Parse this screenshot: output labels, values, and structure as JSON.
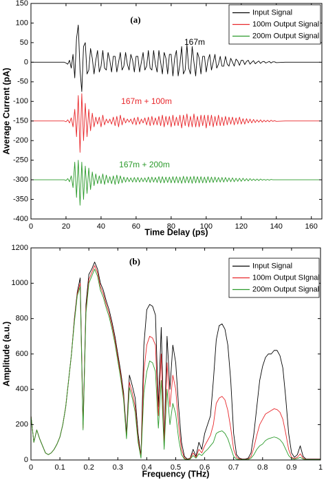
{
  "chart_data": [
    {
      "type": "line",
      "xlabel": "Time Delay (ps)",
      "ylabel": "Average Current (pA)",
      "annotations": [
        "(a)",
        "167m",
        "167m + 100m",
        "167m + 200m"
      ],
      "xlim": [
        0,
        166
      ],
      "xticks": [
        0,
        20,
        40,
        60,
        80,
        100,
        120,
        140,
        160
      ],
      "ylim": [
        -400,
        150
      ],
      "yticks": [
        150,
        100,
        50,
        0,
        -50,
        -100,
        -150,
        -200,
        -250,
        -300,
        -350,
        -400
      ],
      "legend": "upper right",
      "x": [
        0,
        18,
        19,
        20,
        21,
        22,
        23,
        24,
        25,
        26,
        27,
        28,
        29,
        30,
        31,
        32,
        33,
        34,
        35,
        36,
        37,
        38,
        39,
        40,
        41,
        42,
        43,
        44,
        45,
        46,
        47,
        48,
        49,
        50,
        51,
        52,
        53,
        54,
        55,
        56,
        57,
        58,
        59,
        60,
        61,
        62,
        63,
        64,
        65,
        66,
        67,
        68,
        69,
        70,
        71,
        72,
        73,
        74,
        75,
        76,
        77,
        78,
        79,
        80,
        81,
        82,
        83,
        84,
        85,
        86,
        87,
        88,
        89,
        90,
        91,
        92,
        93,
        94,
        95,
        96,
        97,
        98,
        99,
        100,
        101,
        102,
        103,
        104,
        105,
        106,
        107,
        108,
        109,
        110,
        111,
        112,
        113,
        114,
        115,
        116,
        117,
        118,
        119,
        120,
        121,
        122,
        123,
        124,
        125,
        126,
        127,
        128,
        129,
        130,
        131,
        132,
        133,
        134,
        135,
        136,
        137,
        138,
        139,
        140,
        145,
        150,
        155,
        160,
        165
      ],
      "series": [
        {
          "name": "Input Signal",
          "color": "#000000",
          "values": [
            0,
            0,
            0,
            -2,
            -5,
            5,
            -15,
            20,
            -40,
            60,
            95,
            -20,
            -75,
            40,
            50,
            -30,
            -20,
            35,
            10,
            -30,
            5,
            30,
            -25,
            -10,
            30,
            -15,
            -20,
            25,
            5,
            -25,
            15,
            15,
            -25,
            0,
            25,
            -20,
            -10,
            25,
            -5,
            -20,
            20,
            5,
            -25,
            15,
            15,
            -25,
            0,
            25,
            -20,
            -10,
            30,
            -15,
            -20,
            30,
            -5,
            -25,
            30,
            0,
            -30,
            25,
            10,
            -30,
            20,
            20,
            -35,
            10,
            30,
            -35,
            -5,
            40,
            -30,
            -20,
            45,
            -15,
            -30,
            40,
            0,
            -35,
            25,
            10,
            -30,
            15,
            15,
            -25,
            5,
            20,
            -20,
            0,
            20,
            -15,
            -5,
            15,
            -10,
            -10,
            15,
            -5,
            -10,
            10,
            0,
            -10,
            8,
            3,
            -8,
            5,
            5,
            -6,
            2,
            5,
            -5,
            0,
            4,
            -4,
            0,
            3,
            -3,
            1,
            2,
            -2,
            0,
            2,
            -2,
            1,
            1,
            -1,
            0,
            0,
            0,
            0,
            0
          ]
        },
        {
          "name": "100m Output Signal",
          "color": "#e8262a",
          "values": [
            -150,
            -150,
            -150,
            -152,
            -147,
            -155,
            -142,
            -165,
            -120,
            -190,
            -85,
            -230,
            -80,
            -200,
            -105,
            -190,
            -120,
            -175,
            -130,
            -165,
            -140,
            -158,
            -140,
            -165,
            -135,
            -160,
            -145,
            -155,
            -145,
            -158,
            -140,
            -162,
            -138,
            -165,
            -135,
            -160,
            -142,
            -155,
            -145,
            -153,
            -145,
            -158,
            -142,
            -160,
            -140,
            -158,
            -145,
            -155,
            -142,
            -160,
            -140,
            -162,
            -138,
            -160,
            -142,
            -160,
            -138,
            -162,
            -135,
            -165,
            -138,
            -160,
            -138,
            -165,
            -135,
            -162,
            -140,
            -162,
            -135,
            -168,
            -135,
            -162,
            -132,
            -165,
            -138,
            -165,
            -132,
            -165,
            -138,
            -165,
            -135,
            -162,
            -135,
            -168,
            -135,
            -162,
            -135,
            -165,
            -138,
            -162,
            -135,
            -162,
            -140,
            -162,
            -138,
            -160,
            -140,
            -158,
            -140,
            -160,
            -142,
            -158,
            -140,
            -158,
            -144,
            -158,
            -144,
            -155,
            -145,
            -155,
            -146,
            -154,
            -147,
            -153,
            -147,
            -153,
            -148,
            -152,
            -148,
            -152,
            -148,
            -151,
            -149,
            -151,
            -150,
            -150,
            -150,
            -150,
            -150
          ]
        },
        {
          "name": "200m Output Signal",
          "color": "#2a9a2a",
          "values": [
            -300,
            -300,
            -300,
            -302,
            -297,
            -305,
            -290,
            -320,
            -255,
            -345,
            -250,
            -365,
            -255,
            -350,
            -265,
            -335,
            -270,
            -325,
            -280,
            -315,
            -285,
            -310,
            -290,
            -310,
            -285,
            -312,
            -288,
            -308,
            -292,
            -310,
            -290,
            -312,
            -288,
            -310,
            -290,
            -308,
            -293,
            -306,
            -294,
            -305,
            -295,
            -306,
            -294,
            -306,
            -294,
            -306,
            -295,
            -305,
            -295,
            -306,
            -293,
            -307,
            -293,
            -306,
            -294,
            -307,
            -292,
            -308,
            -292,
            -308,
            -293,
            -307,
            -293,
            -308,
            -292,
            -308,
            -292,
            -308,
            -293,
            -309,
            -291,
            -308,
            -292,
            -308,
            -292,
            -309,
            -291,
            -308,
            -292,
            -308,
            -292,
            -308,
            -293,
            -308,
            -292,
            -307,
            -293,
            -307,
            -293,
            -306,
            -294,
            -306,
            -294,
            -306,
            -294,
            -305,
            -295,
            -305,
            -295,
            -305,
            -296,
            -304,
            -296,
            -304,
            -296,
            -303,
            -297,
            -303,
            -297,
            -302,
            -298,
            -302,
            -298,
            -302,
            -298,
            -301,
            -299,
            -301,
            -299,
            -301,
            -299,
            -300,
            -300,
            -300,
            -300,
            -300,
            -300,
            -300,
            -300
          ]
        }
      ]
    },
    {
      "type": "line",
      "xlabel": "Frequency (THz)",
      "ylabel": "Amplitude (a.u.)",
      "annotations": [
        "(b)"
      ],
      "xlim": [
        0,
        1
      ],
      "xticks": [
        0,
        0.1,
        0.2,
        0.3,
        0.4,
        0.5,
        0.6,
        0.7,
        0.8,
        0.9,
        1
      ],
      "ylim": [
        0,
        1200
      ],
      "yticks": [
        0,
        200,
        400,
        600,
        800,
        1000,
        1200
      ],
      "legend": "upper right",
      "x": [
        0,
        0.01,
        0.02,
        0.03,
        0.04,
        0.05,
        0.06,
        0.07,
        0.08,
        0.09,
        0.1,
        0.11,
        0.12,
        0.13,
        0.14,
        0.15,
        0.16,
        0.17,
        0.18,
        0.19,
        0.2,
        0.21,
        0.22,
        0.23,
        0.24,
        0.25,
        0.26,
        0.27,
        0.28,
        0.29,
        0.3,
        0.31,
        0.32,
        0.33,
        0.34,
        0.35,
        0.36,
        0.37,
        0.38,
        0.39,
        0.4,
        0.41,
        0.42,
        0.43,
        0.44,
        0.45,
        0.46,
        0.47,
        0.48,
        0.49,
        0.5,
        0.51,
        0.52,
        0.53,
        0.54,
        0.55,
        0.56,
        0.57,
        0.58,
        0.59,
        0.6,
        0.61,
        0.62,
        0.63,
        0.64,
        0.65,
        0.66,
        0.67,
        0.68,
        0.69,
        0.7,
        0.71,
        0.72,
        0.73,
        0.74,
        0.75,
        0.76,
        0.77,
        0.78,
        0.79,
        0.8,
        0.81,
        0.82,
        0.83,
        0.84,
        0.85,
        0.86,
        0.87,
        0.88,
        0.89,
        0.9,
        0.91,
        0.92,
        0.93,
        0.94,
        0.95,
        0.96,
        0.97,
        0.98,
        0.99,
        1
      ],
      "series": [
        {
          "name": "Input Signal",
          "color": "#000000",
          "values": [
            250,
            100,
            170,
            120,
            80,
            40,
            30,
            40,
            60,
            90,
            130,
            200,
            300,
            450,
            600,
            800,
            950,
            1030,
            200,
            880,
            1050,
            1080,
            1120,
            1080,
            1000,
            960,
            900,
            850,
            780,
            700,
            600,
            500,
            380,
            150,
            480,
            420,
            350,
            150,
            20,
            650,
            850,
            880,
            870,
            820,
            300,
            750,
            100,
            700,
            400,
            650,
            550,
            300,
            100,
            20,
            5,
            10,
            60,
            20,
            100,
            60,
            150,
            200,
            250,
            450,
            680,
            760,
            770,
            740,
            650,
            450,
            150,
            30,
            10,
            5,
            5,
            10,
            40,
            150,
            300,
            450,
            530,
            580,
            600,
            600,
            620,
            620,
            590,
            520,
            350,
            150,
            40,
            15,
            30,
            80,
            20,
            5,
            5,
            5,
            5,
            5,
            5
          ]
        },
        {
          "name": "100m Output SIgnal",
          "color": "#e8262a",
          "values": [
            250,
            100,
            170,
            120,
            80,
            40,
            30,
            40,
            60,
            90,
            130,
            200,
            300,
            450,
            600,
            790,
            940,
            1000,
            180,
            850,
            1020,
            1060,
            1100,
            1060,
            980,
            940,
            880,
            830,
            760,
            680,
            580,
            480,
            360,
            130,
            440,
            380,
            300,
            120,
            15,
            500,
            650,
            700,
            690,
            650,
            250,
            600,
            80,
            550,
            300,
            480,
            400,
            200,
            60,
            10,
            3,
            8,
            40,
            15,
            60,
            40,
            80,
            110,
            140,
            200,
            320,
            350,
            360,
            340,
            280,
            180,
            60,
            15,
            5,
            3,
            3,
            5,
            20,
            70,
            140,
            200,
            230,
            260,
            270,
            280,
            290,
            285,
            270,
            230,
            150,
            60,
            15,
            8,
            15,
            35,
            10,
            3,
            3,
            3,
            3,
            3,
            3
          ]
        },
        {
          "name": "200m Output Signal",
          "color": "#2a9a2a",
          "values": [
            250,
            100,
            170,
            120,
            80,
            40,
            30,
            40,
            60,
            90,
            130,
            200,
            300,
            450,
            600,
            780,
            930,
            980,
            170,
            830,
            1000,
            1040,
            1080,
            1040,
            960,
            920,
            860,
            810,
            740,
            660,
            560,
            460,
            340,
            120,
            410,
            350,
            270,
            100,
            10,
            380,
            500,
            560,
            550,
            500,
            180,
            450,
            60,
            400,
            200,
            320,
            260,
            120,
            30,
            5,
            2,
            5,
            25,
            10,
            35,
            25,
            45,
            60,
            80,
            100,
            150,
            160,
            165,
            150,
            120,
            70,
            20,
            5,
            2,
            2,
            2,
            3,
            10,
            30,
            60,
            80,
            90,
            110,
            120,
            125,
            130,
            125,
            115,
            95,
            60,
            25,
            8,
            4,
            8,
            15,
            5,
            2,
            2,
            2,
            2,
            2,
            2
          ]
        }
      ]
    }
  ]
}
